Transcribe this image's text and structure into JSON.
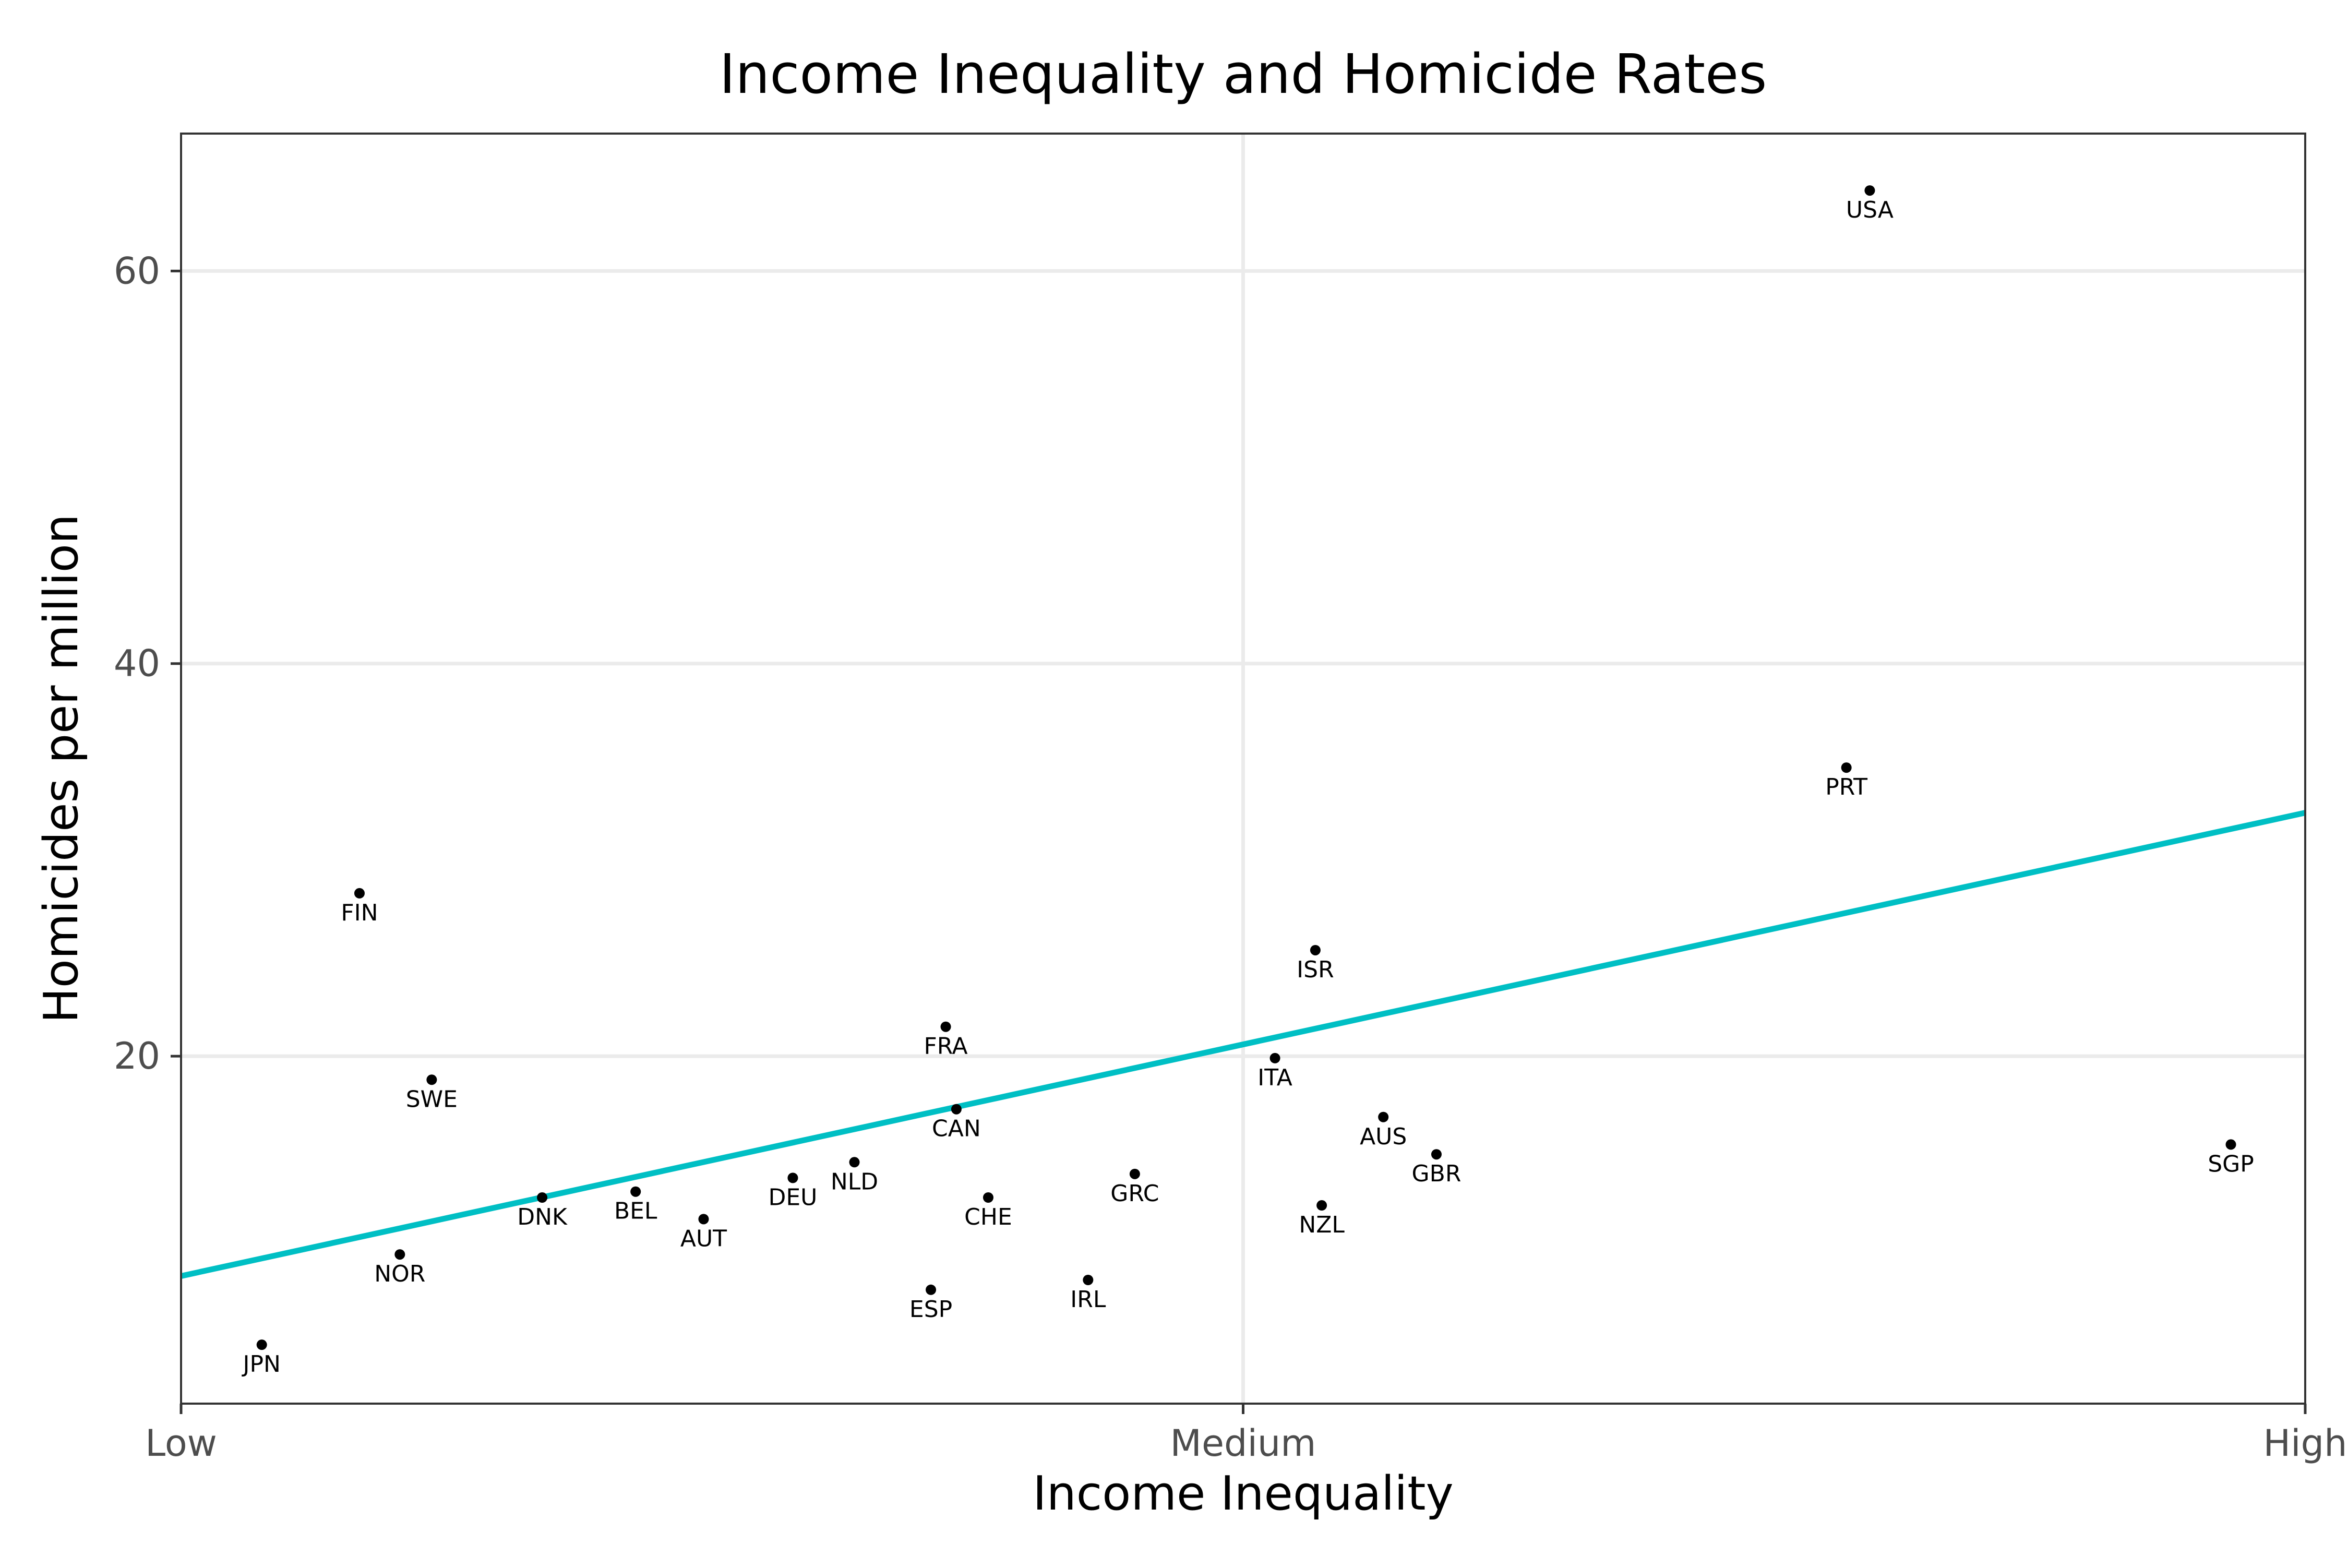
{
  "chart_data": {
    "type": "scatter",
    "title": "Income Inequality and Homicide Rates",
    "xlabel": "Income Inequality",
    "ylabel": "Homicides per million",
    "xlim": [
      0,
      1
    ],
    "ylim": [
      2.3,
      67
    ],
    "x_ticks": [
      {
        "value": 0,
        "label": "Low"
      },
      {
        "value": 0.5,
        "label": "Medium"
      },
      {
        "value": 1,
        "label": "High"
      }
    ],
    "y_ticks": [
      {
        "value": 20,
        "label": "20"
      },
      {
        "value": 40,
        "label": "40"
      },
      {
        "value": 60,
        "label": "60"
      }
    ],
    "grid": true,
    "legend": "none",
    "points": [
      {
        "label": "JPN",
        "x": 0.038,
        "y": 5.3
      },
      {
        "label": "FIN",
        "x": 0.084,
        "y": 28.3
      },
      {
        "label": "NOR",
        "x": 0.103,
        "y": 9.9
      },
      {
        "label": "SWE",
        "x": 0.118,
        "y": 18.8
      },
      {
        "label": "DNK",
        "x": 0.17,
        "y": 12.8
      },
      {
        "label": "BEL",
        "x": 0.214,
        "y": 13.1
      },
      {
        "label": "AUT",
        "x": 0.246,
        "y": 11.7
      },
      {
        "label": "DEU",
        "x": 0.288,
        "y": 13.8
      },
      {
        "label": "NLD",
        "x": 0.317,
        "y": 14.6
      },
      {
        "label": "ESP",
        "x": 0.353,
        "y": 8.1
      },
      {
        "label": "FRA",
        "x": 0.36,
        "y": 21.5
      },
      {
        "label": "CAN",
        "x": 0.365,
        "y": 17.3
      },
      {
        "label": "CHE",
        "x": 0.38,
        "y": 12.8
      },
      {
        "label": "IRL",
        "x": 0.427,
        "y": 8.6
      },
      {
        "label": "GRC",
        "x": 0.449,
        "y": 14.0
      },
      {
        "label": "ITA",
        "x": 0.515,
        "y": 19.9
      },
      {
        "label": "ISR",
        "x": 0.534,
        "y": 25.4
      },
      {
        "label": "NZL",
        "x": 0.537,
        "y": 12.4
      },
      {
        "label": "AUS",
        "x": 0.566,
        "y": 16.9
      },
      {
        "label": "GBR",
        "x": 0.591,
        "y": 15.0
      },
      {
        "label": "PRT",
        "x": 0.784,
        "y": 34.7
      },
      {
        "label": "USA",
        "x": 0.795,
        "y": 64.1
      },
      {
        "label": "SGP",
        "x": 0.965,
        "y": 15.5
      }
    ],
    "trend_line": {
      "x": [
        0,
        1
      ],
      "y": [
        8.8,
        32.4
      ],
      "color": "#00bfc4"
    },
    "point_color": "#000000",
    "gridline_color": "#ebebeb"
  }
}
